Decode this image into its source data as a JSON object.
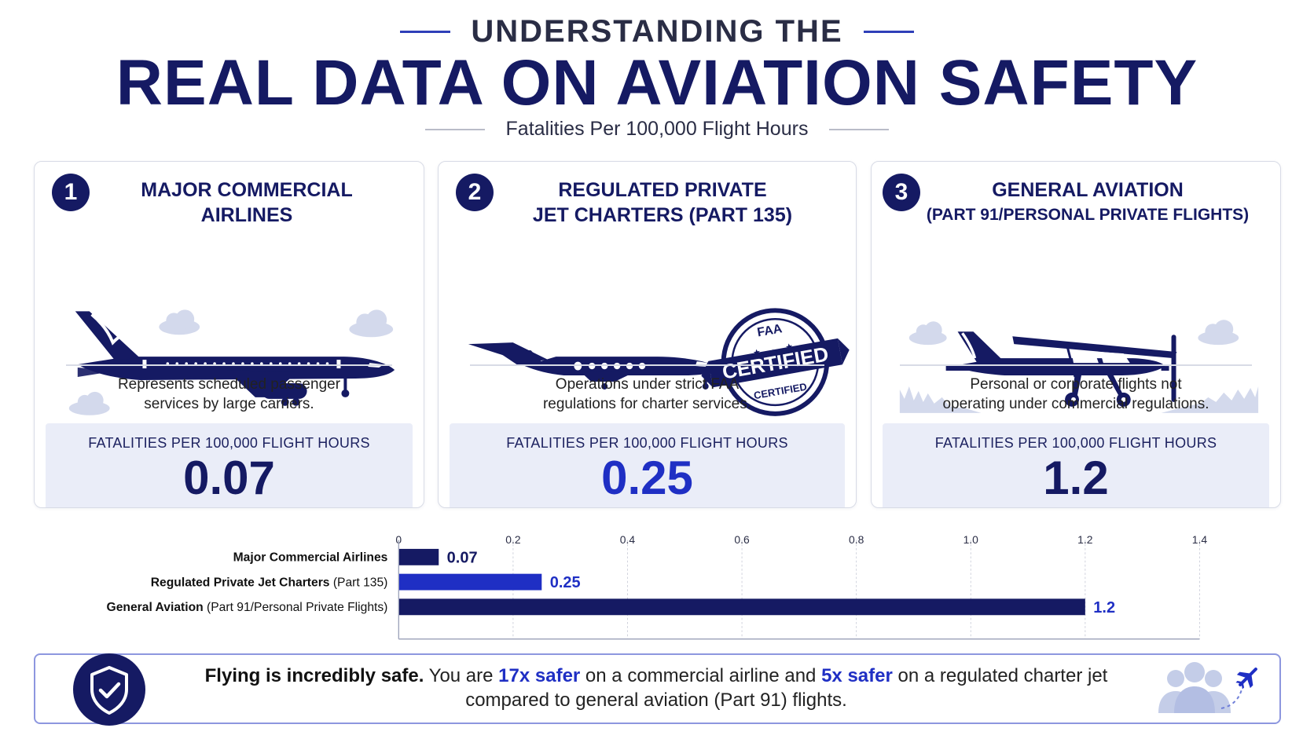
{
  "header": {
    "kicker": "UNDERSTANDING THE",
    "title": "REAL DATA ON AVIATION SAFETY",
    "subtitle": "Fatalities Per 100,000 Flight Hours"
  },
  "cards": [
    {
      "number": "1",
      "title_line1": "MAJOR COMMERCIAL",
      "title_line2": "AIRLINES",
      "desc_line1": "Represents scheduled passenger",
      "desc_line2": "services by large carriers.",
      "metric_label": "FATALITIES PER 100,000 FLIGHT HOURS",
      "metric_value": "0.07",
      "icon": "airliner-icon"
    },
    {
      "number": "2",
      "title_line1": "REGULATED PRIVATE",
      "title_line2": "JET CHARTERS (PART 135)",
      "desc_line1": "Operations under strict FAA",
      "desc_line2": "regulations for charter services.",
      "metric_label": "FATALITIES PER 100,000 FLIGHT HOURS",
      "metric_value": "0.25",
      "icon": "private-jet-icon",
      "stamp_top": "FAA",
      "stamp_main": "CERTIFIED",
      "stamp_bottom": "CERTIFIED"
    },
    {
      "number": "3",
      "title_line1": "GENERAL AVIATION",
      "title_line2": "(PART 91/PERSONAL PRIVATE FLIGHTS)",
      "desc_line1": "Personal or corporate flights not",
      "desc_line2": "operating under commercial regulations.",
      "metric_label": "FATALITIES PER 100,000 FLIGHT HOURS",
      "metric_value": "1.2",
      "icon": "propeller-plane-icon"
    }
  ],
  "chart_data": {
    "type": "bar",
    "orientation": "horizontal",
    "categories": [
      {
        "bold": "Major Commercial Airlines",
        "rest": ""
      },
      {
        "bold": "Regulated Private Jet Charters",
        "rest": " (Part 135)"
      },
      {
        "bold": "General Aviation",
        "rest": " (Part 91/Personal Private Flights)"
      }
    ],
    "values": [
      0.07,
      0.25,
      1.2
    ],
    "value_labels": [
      "0.07",
      "0.25",
      "1.2"
    ],
    "colors": [
      "#151a63",
      "#1f2fc4",
      "#151a63"
    ],
    "label_colors": [
      "#151a63",
      "#1f2fc4",
      "#1f2fc4"
    ],
    "xlim": [
      0,
      1.4
    ],
    "ticks": [
      0,
      0.2,
      0.4,
      0.6,
      0.8,
      1.0,
      1.2,
      1.4
    ],
    "tick_labels": [
      "0",
      "0.2",
      "0.4",
      "0.6",
      "0.8",
      "1.0",
      "1.2",
      "1.4"
    ],
    "grid": true,
    "title": "",
    "xlabel": "",
    "ylabel": ""
  },
  "footer": {
    "lead": "Flying is incredibly safe.",
    "t1": " You are ",
    "hl1": "17x safer",
    "t2": " on a commercial airline and ",
    "hl2": "5x safer",
    "t3": " on a regulated charter jet",
    "line2": "compared to general aviation (Part 91) flights.",
    "icons": [
      "shield-check-icon",
      "people-icon",
      "airplane-icon"
    ]
  },
  "colors": {
    "navy": "#151a63",
    "blue": "#1f2fc4",
    "panel": "#eaedf8",
    "cloud": "#d3d9ec"
  }
}
